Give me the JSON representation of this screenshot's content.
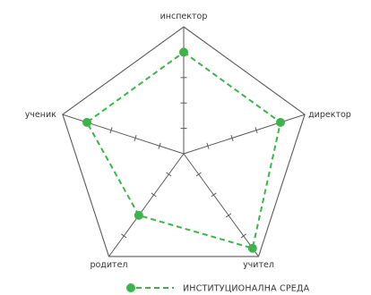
{
  "chart_data": {
    "type": "radar",
    "axes": [
      "инспектор",
      "директор",
      "учител",
      "родител",
      "ученик"
    ],
    "series": [
      {
        "name": "ИНСТИТУЦИОНАЛНА СРЕДА",
        "values": [
          0.8,
          0.8,
          0.92,
          0.6,
          0.8
        ]
      }
    ],
    "range": [
      0,
      1
    ],
    "ticks_per_axis": 5,
    "grid": "outer-pentagon",
    "legend_position": "bottom",
    "colors": {
      "series": "#3cb44b",
      "grid": "#5a5a5a",
      "text": "#333333"
    }
  }
}
